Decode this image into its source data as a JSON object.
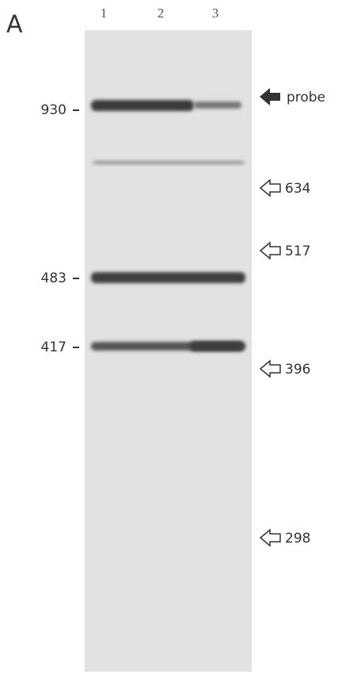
{
  "panel_label": "A",
  "lanes": [
    "1",
    "2",
    "3"
  ],
  "left_markers": [
    "930",
    "483",
    "417"
  ],
  "right_markers": [
    "probe",
    "634",
    "517",
    "396",
    "298"
  ]
}
